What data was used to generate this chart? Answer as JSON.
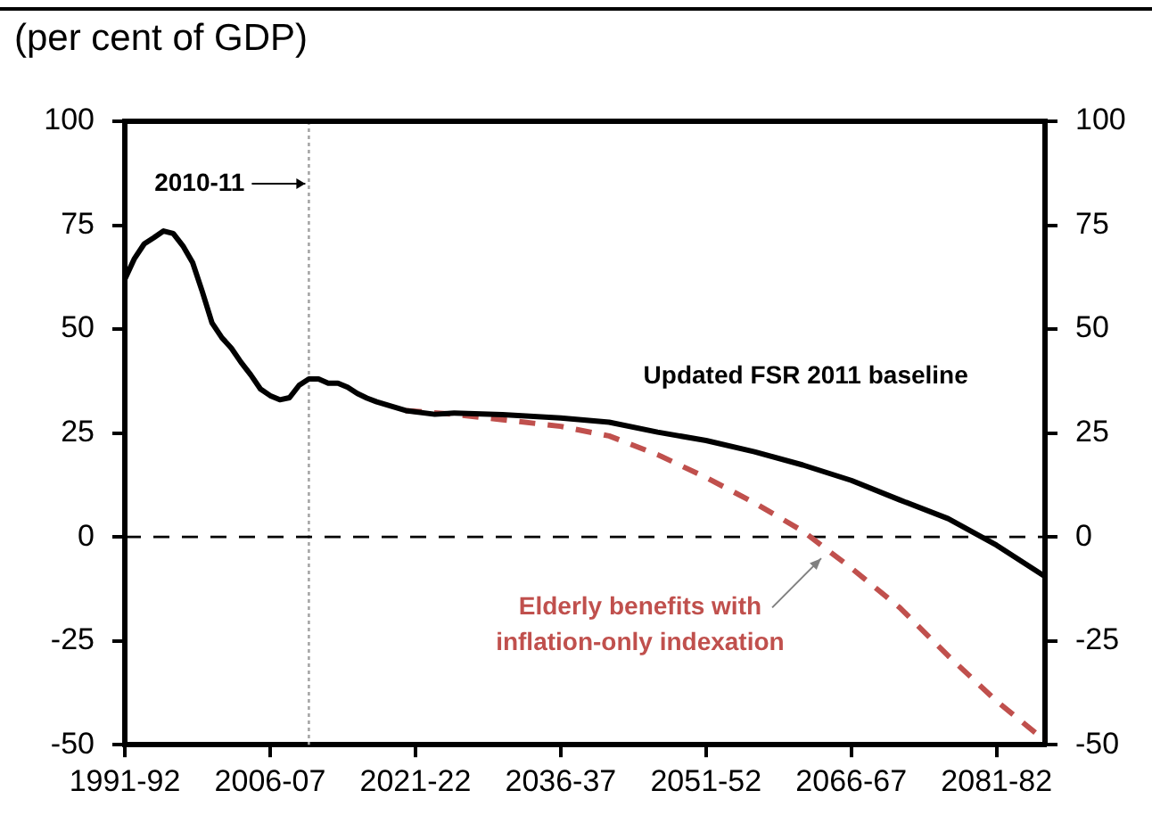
{
  "chart_data": {
    "type": "line",
    "ylabel": "(per cent of GDP)",
    "categories": [
      "1991-92",
      null,
      null,
      null,
      null,
      null,
      null,
      null,
      null,
      null,
      null,
      null,
      null,
      null,
      null,
      "2006-07",
      null,
      null,
      null,
      null,
      null,
      null,
      null,
      null,
      null,
      null,
      null,
      null,
      null,
      null,
      "2021-22",
      null,
      null,
      null,
      null,
      null,
      null,
      null,
      null,
      null,
      null,
      null,
      null,
      null,
      null,
      "2036-37",
      null,
      null,
      null,
      null,
      null,
      null,
      null,
      null,
      null,
      null,
      null,
      null,
      null,
      null,
      "2051-52",
      null,
      null,
      null,
      null,
      null,
      null,
      null,
      null,
      null,
      null,
      null,
      null,
      null,
      null,
      "2066-67",
      null,
      null,
      null,
      null,
      null,
      null,
      null,
      null,
      null,
      null,
      null,
      null,
      null,
      null,
      "2081-82",
      null,
      null,
      null,
      null,
      null
    ],
    "series": [
      {
        "name": "Updated FSR 2011 baseline",
        "color": "#000000",
        "line_style": "solid",
        "values": [
          62,
          67,
          70.5,
          72,
          73.6,
          73,
          70,
          66,
          59,
          51.5,
          48,
          45.4,
          42,
          39,
          35.6,
          34,
          33,
          33.5,
          36.5,
          38,
          38,
          37,
          37,
          36,
          34.5,
          33.4,
          32.5,
          31.8,
          null,
          30.4,
          null,
          null,
          29.5,
          null,
          29.8,
          null,
          null,
          null,
          null,
          29.4,
          null,
          null,
          null,
          null,
          null,
          28.6,
          null,
          null,
          null,
          null,
          27.6,
          null,
          null,
          null,
          null,
          25.2,
          null,
          null,
          null,
          null,
          23.2,
          null,
          null,
          null,
          null,
          20.5,
          null,
          null,
          null,
          null,
          17.3,
          null,
          null,
          null,
          null,
          13.6,
          null,
          null,
          null,
          null,
          8.9,
          null,
          null,
          null,
          null,
          4.4,
          null,
          null,
          null,
          null,
          -2,
          null,
          null,
          null,
          null,
          -9.5
        ]
      },
      {
        "name": "Elderly benefits with inflation-only indexation",
        "color": "#c0504d",
        "line_style": "dashed",
        "values": [
          null,
          null,
          null,
          null,
          null,
          null,
          null,
          null,
          null,
          null,
          null,
          null,
          null,
          null,
          null,
          null,
          null,
          null,
          null,
          null,
          null,
          null,
          null,
          null,
          null,
          null,
          null,
          null,
          null,
          30.4,
          null,
          null,
          null,
          null,
          29.5,
          null,
          null,
          null,
          null,
          28.2,
          null,
          null,
          null,
          null,
          null,
          26.6,
          null,
          null,
          null,
          null,
          24.3,
          null,
          null,
          null,
          null,
          19.8,
          null,
          null,
          null,
          null,
          14.3,
          null,
          null,
          null,
          null,
          8.2,
          null,
          null,
          null,
          null,
          1.4,
          null,
          null,
          null,
          null,
          -7.5,
          null,
          null,
          null,
          null,
          -17,
          null,
          null,
          null,
          null,
          -28.6,
          null,
          null,
          null,
          null,
          -39.5,
          null,
          null,
          null,
          null,
          -49
        ]
      }
    ],
    "ylim": [
      -50,
      100
    ],
    "yticks": [
      -50,
      -25,
      0,
      25,
      50,
      75,
      100
    ],
    "y2lim": [
      -50,
      100
    ],
    "y2ticks": [
      -50,
      -25,
      0,
      25,
      50,
      75,
      100
    ],
    "ref_lines": [
      {
        "axis": "x",
        "label": "2010-11",
        "color": "#a6a6a6",
        "line_style": "dotted"
      },
      {
        "axis": "y",
        "value": 0,
        "color": "#000000",
        "line_style": "dashed"
      }
    ],
    "grid": false,
    "legend": false,
    "marker": "none"
  }
}
